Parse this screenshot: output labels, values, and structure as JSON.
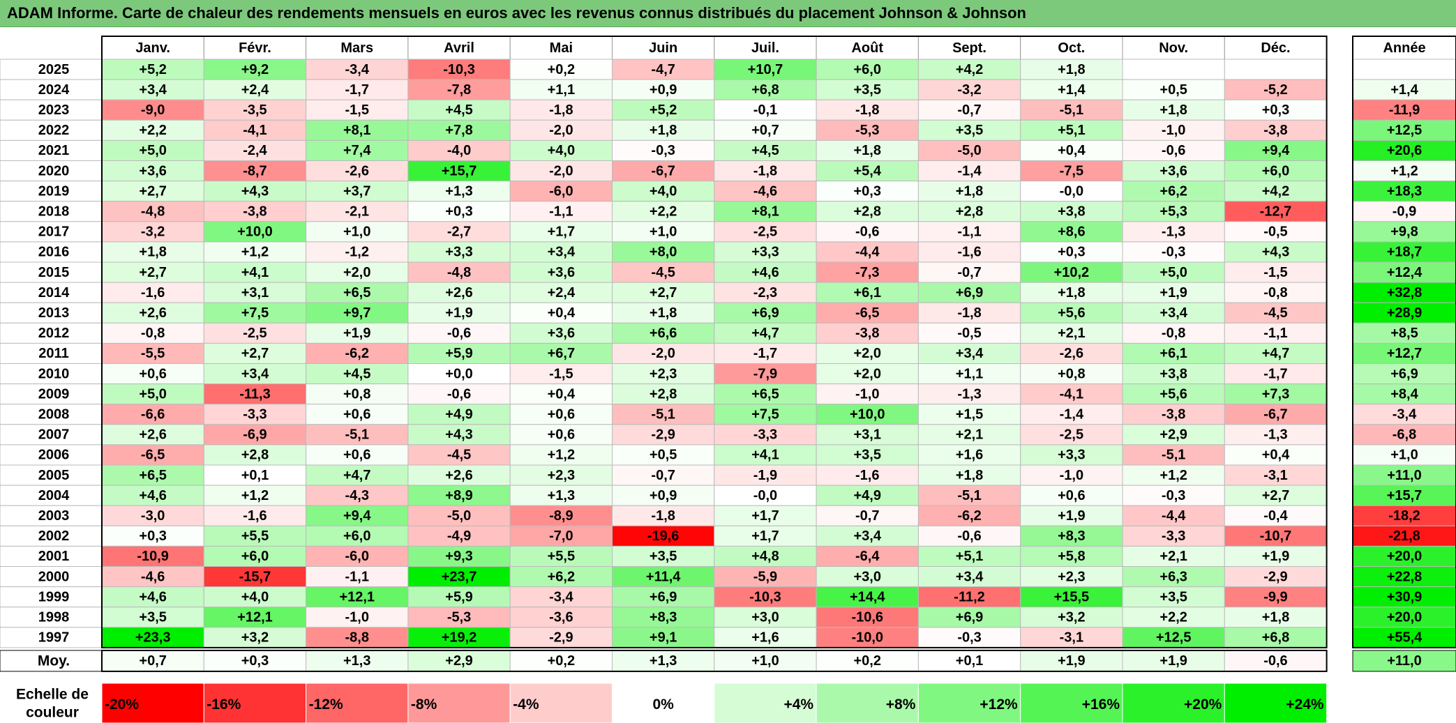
{
  "title": "ADAM Informe. Carte de chaleur des rendements mensuels en euros avec les revenus connus distribués du placement Johnson & Johnson",
  "chart_data": {
    "type": "heatmap",
    "title": "ADAM Informe. Carte de chaleur des rendements mensuels en euros avec les revenus connus distribués du placement Johnson & Johnson",
    "columns": [
      "Janv.",
      "Févr.",
      "Mars",
      "Avril",
      "Mai",
      "Juin",
      "Juil.",
      "Août",
      "Sept.",
      "Oct.",
      "Nov.",
      "Déc."
    ],
    "annual_header": "Année",
    "rows": [
      {
        "year": "2025",
        "values": [
          "+5,2",
          "+9,2",
          "-3,4",
          "-10,3",
          "+0,2",
          "-4,7",
          "+10,7",
          "+6,0",
          "+4,2",
          "+1,8",
          "",
          ""
        ],
        "annual": ""
      },
      {
        "year": "2024",
        "values": [
          "+3,4",
          "+2,4",
          "-1,7",
          "-7,8",
          "+1,1",
          "+0,9",
          "+6,8",
          "+3,5",
          "-3,2",
          "+1,4",
          "+0,5",
          "-5,2"
        ],
        "annual": "+1,4"
      },
      {
        "year": "2023",
        "values": [
          "-9,0",
          "-3,5",
          "-1,5",
          "+4,5",
          "-1,8",
          "+5,2",
          "-0,1",
          "-1,8",
          "-0,7",
          "-5,1",
          "+1,8",
          "+0,3"
        ],
        "annual": "-11,9"
      },
      {
        "year": "2022",
        "values": [
          "+2,2",
          "-4,1",
          "+8,1",
          "+7,8",
          "-2,0",
          "+1,8",
          "+0,7",
          "-5,3",
          "+3,5",
          "+5,1",
          "-1,0",
          "-3,8"
        ],
        "annual": "+12,5"
      },
      {
        "year": "2021",
        "values": [
          "+5,0",
          "-2,4",
          "+7,4",
          "-4,0",
          "+4,0",
          "-0,3",
          "+4,5",
          "+1,8",
          "-5,0",
          "+0,4",
          "-0,6",
          "+9,4"
        ],
        "annual": "+20,6"
      },
      {
        "year": "2020",
        "values": [
          "+3,6",
          "-8,7",
          "-2,6",
          "+15,7",
          "-2,0",
          "-6,7",
          "-1,8",
          "+5,4",
          "-1,4",
          "-7,5",
          "+3,6",
          "+6,0"
        ],
        "annual": "+1,2"
      },
      {
        "year": "2019",
        "values": [
          "+2,7",
          "+4,3",
          "+3,7",
          "+1,3",
          "-6,0",
          "+4,0",
          "-4,6",
          "+0,3",
          "+1,8",
          "-0,0",
          "+6,2",
          "+4,2"
        ],
        "annual": "+18,3"
      },
      {
        "year": "2018",
        "values": [
          "-4,8",
          "-3,8",
          "-2,1",
          "+0,3",
          "-1,1",
          "+2,2",
          "+8,1",
          "+2,8",
          "+2,8",
          "+3,8",
          "+5,3",
          "-12,7"
        ],
        "annual": "-0,9"
      },
      {
        "year": "2017",
        "values": [
          "-3,2",
          "+10,0",
          "+1,0",
          "-2,7",
          "+1,7",
          "+1,0",
          "-2,5",
          "-0,6",
          "-1,1",
          "+8,6",
          "-1,3",
          "-0,5"
        ],
        "annual": "+9,8"
      },
      {
        "year": "2016",
        "values": [
          "+1,8",
          "+1,2",
          "-1,2",
          "+3,3",
          "+3,4",
          "+8,0",
          "+3,3",
          "-4,4",
          "-1,6",
          "+0,3",
          "-0,3",
          "+4,3"
        ],
        "annual": "+18,7"
      },
      {
        "year": "2015",
        "values": [
          "+2,7",
          "+4,1",
          "+2,0",
          "-4,8",
          "+3,6",
          "-4,5",
          "+4,6",
          "-7,3",
          "-0,7",
          "+10,2",
          "+5,0",
          "-1,5"
        ],
        "annual": "+12,4"
      },
      {
        "year": "2014",
        "values": [
          "-1,6",
          "+3,1",
          "+6,5",
          "+2,6",
          "+2,4",
          "+2,7",
          "-2,3",
          "+6,1",
          "+6,9",
          "+1,8",
          "+1,9",
          "-0,8"
        ],
        "annual": "+32,8"
      },
      {
        "year": "2013",
        "values": [
          "+2,6",
          "+7,5",
          "+9,7",
          "+1,9",
          "+0,4",
          "+1,8",
          "+6,9",
          "-6,5",
          "-1,8",
          "+5,6",
          "+3,4",
          "-4,5"
        ],
        "annual": "+28,9"
      },
      {
        "year": "2012",
        "values": [
          "-0,8",
          "-2,5",
          "+1,9",
          "-0,6",
          "+3,6",
          "+6,6",
          "+4,7",
          "-3,8",
          "-0,5",
          "+2,1",
          "-0,8",
          "-1,1"
        ],
        "annual": "+8,5"
      },
      {
        "year": "2011",
        "values": [
          "-5,5",
          "+2,7",
          "-6,2",
          "+5,9",
          "+6,7",
          "-2,0",
          "-1,7",
          "+2,0",
          "+3,4",
          "-2,6",
          "+6,1",
          "+4,7"
        ],
        "annual": "+12,7"
      },
      {
        "year": "2010",
        "values": [
          "+0,6",
          "+3,4",
          "+4,5",
          "+0,0",
          "-1,5",
          "+2,3",
          "-7,9",
          "+2,0",
          "+1,1",
          "+0,8",
          "+3,8",
          "-1,7"
        ],
        "annual": "+6,9"
      },
      {
        "year": "2009",
        "values": [
          "+5,0",
          "-11,3",
          "+0,8",
          "-0,6",
          "+0,4",
          "+2,8",
          "+6,5",
          "-1,0",
          "-1,3",
          "-4,1",
          "+5,6",
          "+7,3"
        ],
        "annual": "+8,4"
      },
      {
        "year": "2008",
        "values": [
          "-6,6",
          "-3,3",
          "+0,6",
          "+4,9",
          "+0,6",
          "-5,1",
          "+7,5",
          "+10,0",
          "+1,5",
          "-1,4",
          "-3,8",
          "-6,7"
        ],
        "annual": "-3,4"
      },
      {
        "year": "2007",
        "values": [
          "+2,6",
          "-6,9",
          "-5,1",
          "+4,3",
          "+0,6",
          "-2,9",
          "-3,3",
          "+3,1",
          "+2,1",
          "-2,5",
          "+2,9",
          "-1,3"
        ],
        "annual": "-6,8"
      },
      {
        "year": "2006",
        "values": [
          "-6,5",
          "+2,8",
          "+0,6",
          "-4,5",
          "+1,2",
          "+0,5",
          "+4,1",
          "+3,5",
          "+1,6",
          "+3,3",
          "-5,1",
          "+0,4"
        ],
        "annual": "+1,0"
      },
      {
        "year": "2005",
        "values": [
          "+6,5",
          "+0,1",
          "+4,7",
          "+2,6",
          "+2,3",
          "-0,7",
          "-1,9",
          "-1,6",
          "+1,8",
          "-1,0",
          "+1,2",
          "-3,1"
        ],
        "annual": "+11,0"
      },
      {
        "year": "2004",
        "values": [
          "+4,6",
          "+1,2",
          "-4,3",
          "+8,9",
          "+1,3",
          "+0,9",
          "-0,0",
          "+4,9",
          "-5,1",
          "+0,6",
          "-0,3",
          "+2,7"
        ],
        "annual": "+15,7"
      },
      {
        "year": "2003",
        "values": [
          "-3,0",
          "-1,6",
          "+9,4",
          "-5,0",
          "-8,9",
          "-1,8",
          "+1,7",
          "-0,7",
          "-6,2",
          "+1,9",
          "-4,4",
          "-0,4"
        ],
        "annual": "-18,2"
      },
      {
        "year": "2002",
        "values": [
          "+0,3",
          "+5,5",
          "+6,0",
          "-4,9",
          "-7,0",
          "-19,6",
          "+1,7",
          "+3,4",
          "-0,6",
          "+8,3",
          "-3,3",
          "-10,7"
        ],
        "annual": "-21,8"
      },
      {
        "year": "2001",
        "values": [
          "-10,9",
          "+6,0",
          "-6,0",
          "+9,3",
          "+5,5",
          "+3,5",
          "+4,8",
          "-6,4",
          "+5,1",
          "+5,8",
          "+2,1",
          "+1,9"
        ],
        "annual": "+20,0"
      },
      {
        "year": "2000",
        "values": [
          "-4,6",
          "-15,7",
          "-1,1",
          "+23,7",
          "+6,2",
          "+11,4",
          "-5,9",
          "+3,0",
          "+3,4",
          "+2,3",
          "+6,3",
          "-2,9"
        ],
        "annual": "+22,8"
      },
      {
        "year": "1999",
        "values": [
          "+4,6",
          "+4,0",
          "+12,1",
          "+5,9",
          "-3,4",
          "+6,9",
          "-10,3",
          "+14,4",
          "-11,2",
          "+15,5",
          "+3,5",
          "-9,9"
        ],
        "annual": "+30,9"
      },
      {
        "year": "1998",
        "values": [
          "+3,5",
          "+12,1",
          "-1,0",
          "-5,3",
          "-3,6",
          "+8,3",
          "+3,0",
          "-10,6",
          "+6,9",
          "+3,2",
          "+2,2",
          "+1,8"
        ],
        "annual": "+20,0"
      },
      {
        "year": "1997",
        "values": [
          "+23,3",
          "+3,2",
          "-8,8",
          "+19,2",
          "-2,9",
          "+9,1",
          "+1,6",
          "-10,0",
          "-0,3",
          "-3,1",
          "+12,5",
          "+6,8"
        ],
        "annual": "+55,4"
      }
    ],
    "average": {
      "label": "Moy.",
      "values": [
        "+0,7",
        "+0,3",
        "+1,3",
        "+2,9",
        "+0,2",
        "+1,3",
        "+1,0",
        "+0,2",
        "+0,1",
        "+1,9",
        "+1,9",
        "-0,6"
      ],
      "annual": "+11,0"
    },
    "scale": {
      "label_line1": "Echelle de",
      "label_line2": "couleur",
      "stops": [
        "-20%",
        "-16%",
        "-12%",
        "-8%",
        "-4%",
        "0%",
        "+4%",
        "+8%",
        "+12%",
        "+16%",
        "+20%",
        "+24%"
      ],
      "stop_values": [
        -20,
        -16,
        -12,
        -8,
        -4,
        0,
        4,
        8,
        12,
        16,
        20,
        24
      ]
    },
    "colors": {
      "negative": "#ff0000",
      "neutral": "#ffffff",
      "positive": "#00ee00",
      "title_bar": "#7cc97c"
    }
  }
}
